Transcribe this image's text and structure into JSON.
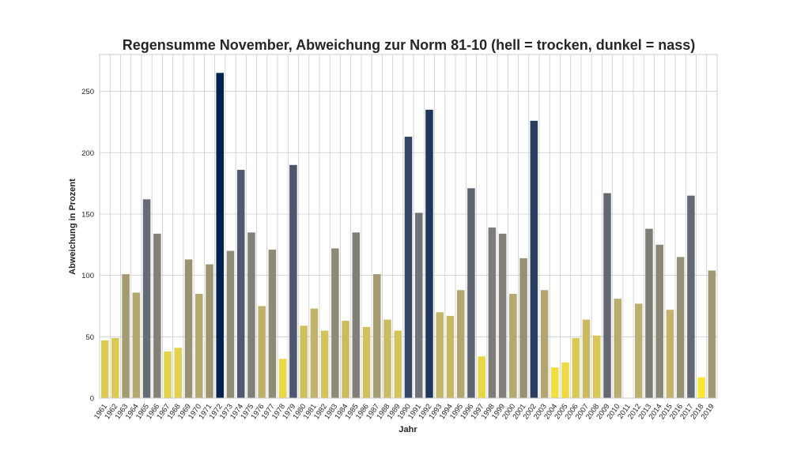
{
  "chart_data": {
    "type": "bar",
    "title": "Regensumme November, Abweichung zur Norm 81-10 (hell = trocken, dunkel = nass)",
    "xlabel": "Jahr",
    "ylabel": "Abweichung in Prozent",
    "ylim": [
      0,
      280
    ],
    "yticks": [
      0,
      50,
      100,
      150,
      200,
      250
    ],
    "grid": true,
    "legend": "none",
    "color_scale": "cividis (reversed: hell = trocken, dunkel = nass)",
    "categories": [
      "1961",
      "1962",
      "1963",
      "1964",
      "1965",
      "1966",
      "1967",
      "1968",
      "1969",
      "1970",
      "1971",
      "1972",
      "1973",
      "1974",
      "1975",
      "1976",
      "1977",
      "1978",
      "1979",
      "1980",
      "1981",
      "1982",
      "1983",
      "1984",
      "1985",
      "1986",
      "1987",
      "1988",
      "1989",
      "1990",
      "1991",
      "1992",
      "1993",
      "1994",
      "1995",
      "1996",
      "1997",
      "1998",
      "1999",
      "2000",
      "2001",
      "2002",
      "2003",
      "2004",
      "2005",
      "2006",
      "2007",
      "2008",
      "2009",
      "2010",
      "2011",
      "2012",
      "2013",
      "2014",
      "2015",
      "2016",
      "2017",
      "2018",
      "2019"
    ],
    "values": [
      47,
      49,
      101,
      86,
      162,
      134,
      38,
      41,
      113,
      85,
      109,
      265,
      120,
      186,
      135,
      75,
      121,
      32,
      190,
      59,
      73,
      55,
      122,
      63,
      135,
      58,
      101,
      64,
      55,
      213,
      151,
      235,
      70,
      67,
      88,
      171,
      34,
      139,
      134,
      85,
      114,
      226,
      88,
      25,
      29,
      49,
      64,
      51,
      167,
      81,
      0,
      77,
      138,
      125,
      72,
      115,
      165,
      17,
      104
    ]
  }
}
